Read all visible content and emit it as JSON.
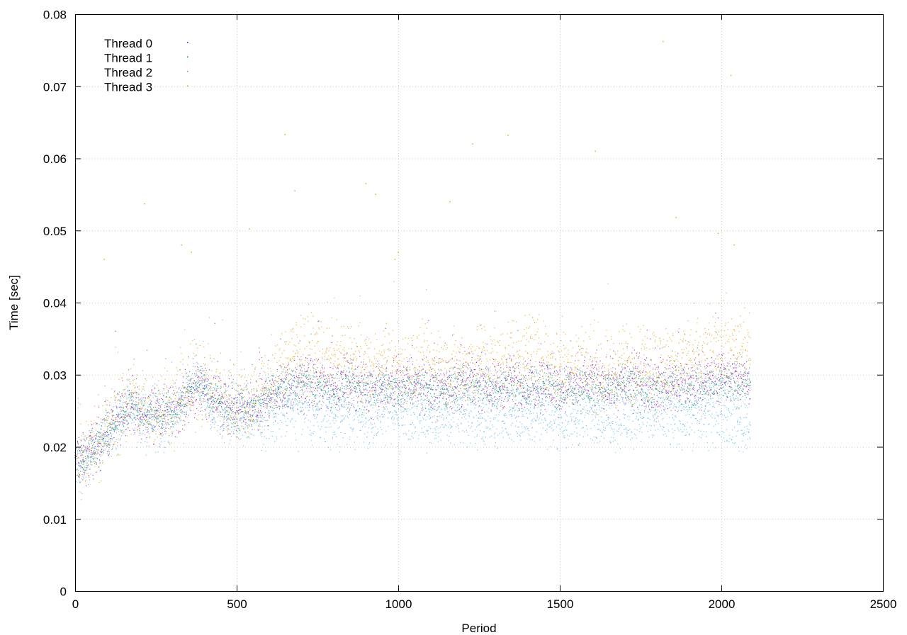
{
  "chart_data": {
    "type": "scatter",
    "title": "",
    "xlabel": "Period",
    "ylabel": "Time [sec]",
    "xlim": [
      0,
      2500
    ],
    "ylim": [
      0,
      0.08
    ],
    "x_ticks": [
      "0",
      "500",
      "1000",
      "1500",
      "2000",
      "2500"
    ],
    "y_ticks": [
      "0",
      "0.01",
      "0.02",
      "0.03",
      "0.04",
      "0.05",
      "0.06",
      "0.07",
      "0.08"
    ],
    "grid": true,
    "legend_position": "top-left",
    "series": [
      {
        "name": "Thread 0",
        "color": "#9400d3",
        "points": [
          [
            0,
            0.0185
          ],
          [
            25,
            0.018
          ],
          [
            50,
            0.0195
          ],
          [
            75,
            0.0205
          ],
          [
            100,
            0.022
          ],
          [
            125,
            0.0235
          ],
          [
            150,
            0.025
          ],
          [
            175,
            0.0265
          ],
          [
            200,
            0.024
          ],
          [
            225,
            0.0245
          ],
          [
            250,
            0.025
          ],
          [
            275,
            0.0245
          ],
          [
            300,
            0.025
          ],
          [
            325,
            0.026
          ],
          [
            350,
            0.027
          ],
          [
            375,
            0.028
          ],
          [
            400,
            0.0285
          ],
          [
            425,
            0.027
          ],
          [
            450,
            0.026
          ],
          [
            475,
            0.0255
          ],
          [
            500,
            0.025
          ],
          [
            525,
            0.0255
          ],
          [
            550,
            0.025
          ],
          [
            575,
            0.026
          ],
          [
            600,
            0.027
          ],
          [
            625,
            0.0275
          ],
          [
            650,
            0.028
          ],
          [
            675,
            0.0285
          ],
          [
            700,
            0.029
          ],
          [
            750,
            0.0285
          ],
          [
            800,
            0.0285
          ],
          [
            850,
            0.029
          ],
          [
            900,
            0.0285
          ],
          [
            950,
            0.028
          ],
          [
            1000,
            0.0285
          ],
          [
            1050,
            0.029
          ],
          [
            1100,
            0.028
          ],
          [
            1150,
            0.0285
          ],
          [
            1200,
            0.029
          ],
          [
            1250,
            0.029
          ],
          [
            1300,
            0.0285
          ],
          [
            1350,
            0.029
          ],
          [
            1400,
            0.0285
          ],
          [
            1450,
            0.029
          ],
          [
            1500,
            0.028
          ],
          [
            1550,
            0.0285
          ],
          [
            1600,
            0.029
          ],
          [
            1650,
            0.0285
          ],
          [
            1700,
            0.0285
          ],
          [
            1750,
            0.029
          ],
          [
            1800,
            0.0285
          ],
          [
            1850,
            0.029
          ],
          [
            1900,
            0.0285
          ],
          [
            1950,
            0.029
          ],
          [
            2000,
            0.03
          ],
          [
            2050,
            0.0295
          ],
          [
            2090,
            0.029
          ]
        ]
      },
      {
        "name": "Thread 1",
        "color": "#009e73",
        "points": [
          [
            0,
            0.0185
          ],
          [
            25,
            0.0182
          ],
          [
            50,
            0.0195
          ],
          [
            75,
            0.0205
          ],
          [
            100,
            0.022
          ],
          [
            125,
            0.0235
          ],
          [
            150,
            0.025
          ],
          [
            175,
            0.0265
          ],
          [
            200,
            0.0245
          ],
          [
            225,
            0.0245
          ],
          [
            250,
            0.025
          ],
          [
            275,
            0.025
          ],
          [
            300,
            0.025
          ],
          [
            325,
            0.026
          ],
          [
            350,
            0.0275
          ],
          [
            375,
            0.029
          ],
          [
            400,
            0.028
          ],
          [
            425,
            0.027
          ],
          [
            450,
            0.026
          ],
          [
            475,
            0.0255
          ],
          [
            500,
            0.0255
          ],
          [
            525,
            0.0255
          ],
          [
            550,
            0.0255
          ],
          [
            575,
            0.026
          ],
          [
            600,
            0.027
          ],
          [
            625,
            0.0275
          ],
          [
            650,
            0.028
          ],
          [
            675,
            0.0285
          ],
          [
            700,
            0.029
          ],
          [
            750,
            0.0285
          ],
          [
            800,
            0.028
          ],
          [
            850,
            0.0285
          ],
          [
            900,
            0.028
          ],
          [
            950,
            0.0285
          ],
          [
            1000,
            0.028
          ],
          [
            1050,
            0.0285
          ],
          [
            1100,
            0.028
          ],
          [
            1150,
            0.028
          ],
          [
            1200,
            0.0285
          ],
          [
            1250,
            0.0285
          ],
          [
            1300,
            0.028
          ],
          [
            1350,
            0.0285
          ],
          [
            1400,
            0.028
          ],
          [
            1450,
            0.0285
          ],
          [
            1500,
            0.028
          ],
          [
            1550,
            0.0285
          ],
          [
            1600,
            0.028
          ],
          [
            1650,
            0.028
          ],
          [
            1700,
            0.0285
          ],
          [
            1750,
            0.0285
          ],
          [
            1800,
            0.028
          ],
          [
            1850,
            0.0285
          ],
          [
            1900,
            0.028
          ],
          [
            1950,
            0.0285
          ],
          [
            2000,
            0.029
          ],
          [
            2050,
            0.0285
          ],
          [
            2090,
            0.0285
          ]
        ]
      },
      {
        "name": "Thread 2",
        "color": "#56b4e9",
        "points": [
          [
            0,
            0.0175
          ],
          [
            25,
            0.0178
          ],
          [
            50,
            0.019
          ],
          [
            75,
            0.02
          ],
          [
            100,
            0.0215
          ],
          [
            125,
            0.023
          ],
          [
            150,
            0.0245
          ],
          [
            175,
            0.026
          ],
          [
            200,
            0.0235
          ],
          [
            225,
            0.0235
          ],
          [
            250,
            0.024
          ],
          [
            275,
            0.0235
          ],
          [
            300,
            0.024
          ],
          [
            325,
            0.025
          ],
          [
            350,
            0.0275
          ],
          [
            375,
            0.0305
          ],
          [
            400,
            0.027
          ],
          [
            425,
            0.0255
          ],
          [
            450,
            0.0245
          ],
          [
            475,
            0.024
          ],
          [
            500,
            0.0235
          ],
          [
            525,
            0.024
          ],
          [
            550,
            0.0235
          ],
          [
            575,
            0.024
          ],
          [
            600,
            0.025
          ],
          [
            625,
            0.0255
          ],
          [
            650,
            0.0255
          ],
          [
            675,
            0.025
          ],
          [
            700,
            0.025
          ],
          [
            750,
            0.0245
          ],
          [
            800,
            0.024
          ],
          [
            850,
            0.0245
          ],
          [
            900,
            0.024
          ],
          [
            950,
            0.0245
          ],
          [
            1000,
            0.024
          ],
          [
            1050,
            0.0245
          ],
          [
            1100,
            0.024
          ],
          [
            1150,
            0.024
          ],
          [
            1200,
            0.0245
          ],
          [
            1250,
            0.024
          ],
          [
            1300,
            0.024
          ],
          [
            1350,
            0.0245
          ],
          [
            1400,
            0.024
          ],
          [
            1450,
            0.0245
          ],
          [
            1500,
            0.024
          ],
          [
            1550,
            0.024
          ],
          [
            1600,
            0.0245
          ],
          [
            1650,
            0.024
          ],
          [
            1700,
            0.024
          ],
          [
            1750,
            0.0245
          ],
          [
            1800,
            0.024
          ],
          [
            1850,
            0.024
          ],
          [
            1900,
            0.0245
          ],
          [
            1950,
            0.024
          ],
          [
            2000,
            0.025
          ],
          [
            2050,
            0.0235
          ],
          [
            2090,
            0.023
          ]
        ]
      },
      {
        "name": "Thread 3",
        "color": "#e69f00",
        "points": [
          [
            0,
            0.019
          ],
          [
            25,
            0.0185
          ],
          [
            50,
            0.0198
          ],
          [
            75,
            0.021
          ],
          [
            100,
            0.0225
          ],
          [
            125,
            0.024
          ],
          [
            150,
            0.0255
          ],
          [
            175,
            0.027
          ],
          [
            200,
            0.025
          ],
          [
            225,
            0.025
          ],
          [
            250,
            0.0255
          ],
          [
            275,
            0.025
          ],
          [
            300,
            0.0255
          ],
          [
            325,
            0.0265
          ],
          [
            350,
            0.0275
          ],
          [
            375,
            0.0285
          ],
          [
            400,
            0.029
          ],
          [
            425,
            0.0275
          ],
          [
            450,
            0.0265
          ],
          [
            475,
            0.026
          ],
          [
            500,
            0.026
          ],
          [
            525,
            0.026
          ],
          [
            550,
            0.026
          ],
          [
            575,
            0.027
          ],
          [
            600,
            0.028
          ],
          [
            625,
            0.029
          ],
          [
            650,
            0.031
          ],
          [
            675,
            0.0325
          ],
          [
            700,
            0.0325
          ],
          [
            750,
            0.032
          ],
          [
            800,
            0.0315
          ],
          [
            850,
            0.0315
          ],
          [
            900,
            0.031
          ],
          [
            950,
            0.031
          ],
          [
            1000,
            0.0315
          ],
          [
            1050,
            0.031
          ],
          [
            1100,
            0.031
          ],
          [
            1150,
            0.0305
          ],
          [
            1200,
            0.031
          ],
          [
            1250,
            0.032
          ],
          [
            1300,
            0.031
          ],
          [
            1350,
            0.032
          ],
          [
            1400,
            0.033
          ],
          [
            1450,
            0.032
          ],
          [
            1500,
            0.031
          ],
          [
            1550,
            0.031
          ],
          [
            1600,
            0.031
          ],
          [
            1650,
            0.0305
          ],
          [
            1700,
            0.031
          ],
          [
            1750,
            0.0315
          ],
          [
            1800,
            0.031
          ],
          [
            1850,
            0.0315
          ],
          [
            1900,
            0.032
          ],
          [
            1950,
            0.032
          ],
          [
            2000,
            0.034
          ],
          [
            2050,
            0.033
          ],
          [
            2090,
            0.032
          ]
        ],
        "outliers": [
          [
            1820,
            0.0762
          ],
          [
            2030,
            0.0715
          ],
          [
            650,
            0.0633
          ],
          [
            1340,
            0.0632
          ],
          [
            1230,
            0.062
          ],
          [
            1610,
            0.061
          ],
          [
            900,
            0.0565
          ],
          [
            680,
            0.0555
          ],
          [
            1160,
            0.054
          ],
          [
            215,
            0.0537
          ],
          [
            930,
            0.055
          ],
          [
            1860,
            0.0518
          ],
          [
            540,
            0.0502
          ],
          [
            1990,
            0.0496
          ],
          [
            330,
            0.048
          ],
          [
            2040,
            0.048
          ],
          [
            360,
            0.047
          ],
          [
            990,
            0.046
          ],
          [
            90,
            0.046
          ],
          [
            1000,
            0.047
          ]
        ]
      }
    ]
  }
}
